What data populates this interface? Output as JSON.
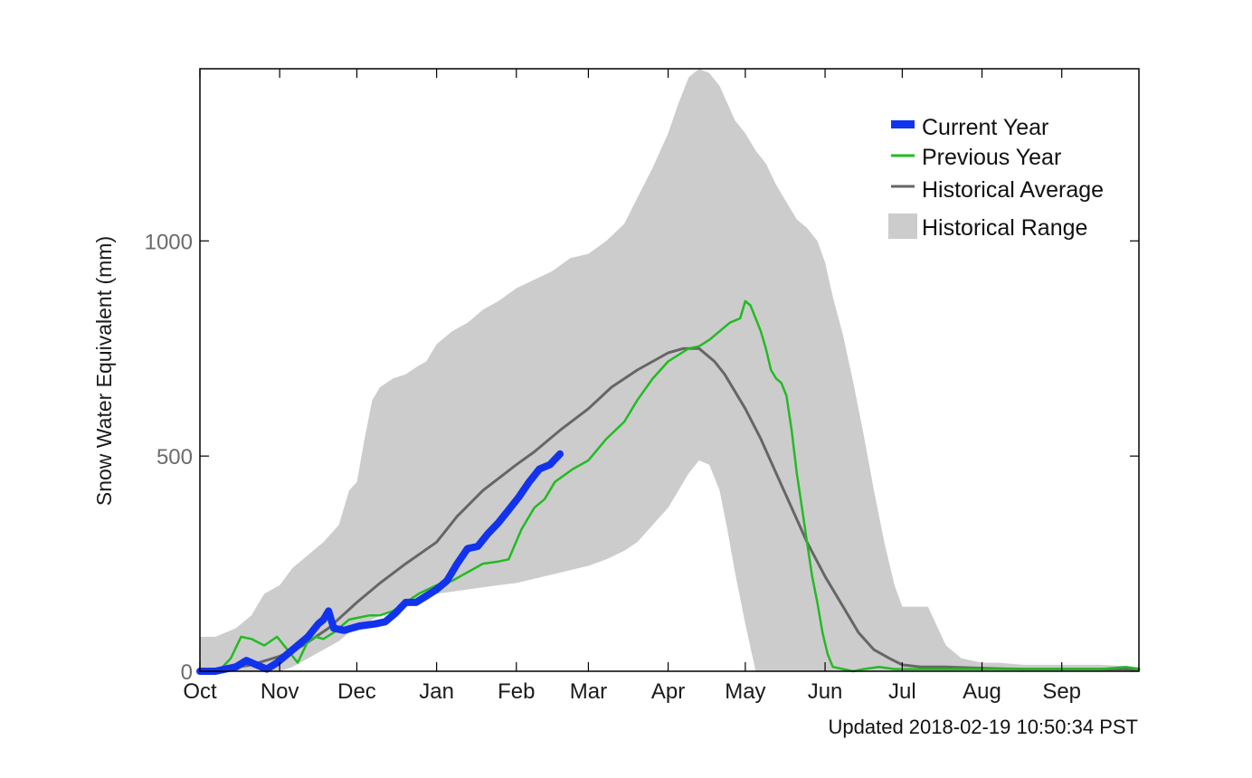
{
  "chart_data": {
    "type": "area",
    "xlabel": "",
    "ylabel": "Snow Water Equivalent (mm)",
    "ylim": [
      0,
      1400
    ],
    "yticks": [
      0,
      500,
      1000
    ],
    "xlim": [
      0,
      365
    ],
    "x_unit": "days from Oct 1",
    "month_ticks": [
      {
        "label": "Oct",
        "day": 0
      },
      {
        "label": "Nov",
        "day": 31
      },
      {
        "label": "Dec",
        "day": 61
      },
      {
        "label": "Jan",
        "day": 92
      },
      {
        "label": "Feb",
        "day": 123
      },
      {
        "label": "Mar",
        "day": 151
      },
      {
        "label": "Apr",
        "day": 182
      },
      {
        "label": "May",
        "day": 212
      },
      {
        "label": "Jun",
        "day": 243
      },
      {
        "label": "Jul",
        "day": 273
      },
      {
        "label": "Aug",
        "day": 304
      },
      {
        "label": "Sep",
        "day": 335
      }
    ],
    "legend_position": "top-right",
    "grid": false,
    "updated": "Updated 2018-02-19 10:50:34 PST",
    "series": [
      {
        "name": "Historical Range",
        "kind": "band",
        "color": "#cccccc",
        "x": [
          0,
          6,
          10,
          14,
          20,
          25,
          31,
          36,
          42,
          48,
          54,
          58,
          61,
          64,
          67,
          70,
          75,
          80,
          85,
          88,
          92,
          98,
          104,
          110,
          116,
          123,
          130,
          137,
          144,
          151,
          158,
          165,
          170,
          176,
          182,
          186,
          190,
          194,
          198,
          202,
          205,
          208,
          212,
          216,
          220,
          224,
          228,
          232,
          236,
          240,
          243,
          246,
          250,
          254,
          258,
          262,
          266,
          270,
          273,
          279,
          283,
          290,
          296,
          304,
          310,
          320,
          335,
          350,
          365
        ],
        "upper": [
          80,
          80,
          90,
          100,
          130,
          180,
          200,
          240,
          270,
          300,
          340,
          420,
          440,
          540,
          630,
          660,
          680,
          690,
          710,
          720,
          760,
          790,
          810,
          840,
          860,
          890,
          910,
          930,
          960,
          970,
          1000,
          1040,
          1100,
          1170,
          1250,
          1320,
          1380,
          1400,
          1390,
          1360,
          1320,
          1280,
          1250,
          1210,
          1180,
          1130,
          1090,
          1050,
          1030,
          1000,
          950,
          870,
          780,
          670,
          550,
          420,
          300,
          200,
          150,
          150,
          150,
          60,
          30,
          20,
          20,
          15,
          15,
          15,
          10
        ],
        "lower": [
          0,
          0,
          0,
          0,
          0,
          0,
          0,
          10,
          30,
          50,
          70,
          90,
          100,
          110,
          120,
          130,
          140,
          150,
          160,
          170,
          180,
          185,
          190,
          195,
          200,
          205,
          215,
          225,
          235,
          245,
          260,
          280,
          300,
          340,
          380,
          420,
          460,
          490,
          480,
          420,
          330,
          230,
          110,
          0,
          0,
          0,
          0,
          0,
          0,
          0,
          0,
          0,
          0,
          0,
          0,
          0,
          0,
          0,
          0,
          0,
          0,
          0,
          0,
          0,
          0,
          0,
          0,
          0,
          0
        ]
      },
      {
        "name": "Historical Average",
        "kind": "line",
        "color": "#666666",
        "x": [
          0,
          10,
          20,
          31,
          40,
          50,
          61,
          70,
          80,
          92,
          100,
          110,
          123,
          130,
          140,
          151,
          160,
          170,
          182,
          188,
          194,
          200,
          204,
          208,
          212,
          218,
          224,
          230,
          236,
          243,
          250,
          256,
          262,
          268,
          273,
          280,
          290,
          300,
          310,
          320,
          335,
          350,
          365
        ],
        "y": [
          0,
          5,
          15,
          35,
          60,
          100,
          160,
          205,
          250,
          300,
          360,
          420,
          480,
          510,
          560,
          610,
          660,
          700,
          740,
          750,
          750,
          720,
          690,
          650,
          610,
          540,
          460,
          380,
          300,
          220,
          150,
          90,
          50,
          30,
          15,
          10,
          10,
          8,
          6,
          5,
          5,
          5,
          5
        ]
      },
      {
        "name": "Previous Year",
        "kind": "line",
        "color": "#22bb22",
        "x": [
          0,
          8,
          12,
          16,
          20,
          25,
          30,
          34,
          38,
          42,
          45,
          48,
          52,
          58,
          62,
          66,
          70,
          75,
          80,
          85,
          92,
          98,
          104,
          110,
          116,
          120,
          125,
          130,
          134,
          138,
          145,
          151,
          158,
          165,
          170,
          176,
          182,
          190,
          194,
          198,
          202,
          206,
          210,
          212,
          214,
          216,
          218,
          220,
          222,
          224,
          226,
          228,
          230,
          232,
          234,
          236,
          238,
          240,
          242,
          244,
          246,
          250,
          254,
          258,
          264,
          270,
          290,
          310,
          330,
          350,
          360,
          365
        ],
        "y": [
          0,
          5,
          30,
          80,
          75,
          60,
          80,
          50,
          20,
          70,
          80,
          75,
          90,
          120,
          125,
          130,
          130,
          140,
          160,
          180,
          200,
          210,
          230,
          250,
          255,
          260,
          330,
          380,
          400,
          440,
          470,
          490,
          540,
          580,
          630,
          680,
          720,
          750,
          755,
          770,
          790,
          810,
          820,
          860,
          850,
          820,
          790,
          750,
          700,
          680,
          670,
          640,
          560,
          460,
          380,
          300,
          220,
          160,
          90,
          40,
          10,
          5,
          0,
          5,
          10,
          5,
          5,
          5,
          5,
          5,
          10,
          5
        ]
      },
      {
        "name": "Current Year",
        "kind": "line",
        "color": "#1133ee",
        "x": [
          0,
          6,
          10,
          14,
          18,
          22,
          26,
          30,
          34,
          38,
          42,
          46,
          48,
          50,
          52,
          56,
          62,
          68,
          72,
          76,
          80,
          84,
          88,
          92,
          96,
          100,
          104,
          108,
          112,
          116,
          120,
          124,
          128,
          132,
          136,
          140
        ],
        "y": [
          0,
          0,
          5,
          10,
          25,
          15,
          5,
          20,
          40,
          60,
          80,
          110,
          120,
          140,
          100,
          95,
          105,
          110,
          115,
          135,
          160,
          160,
          175,
          190,
          210,
          250,
          285,
          290,
          320,
          345,
          375,
          405,
          440,
          470,
          480,
          505
        ]
      }
    ]
  }
}
